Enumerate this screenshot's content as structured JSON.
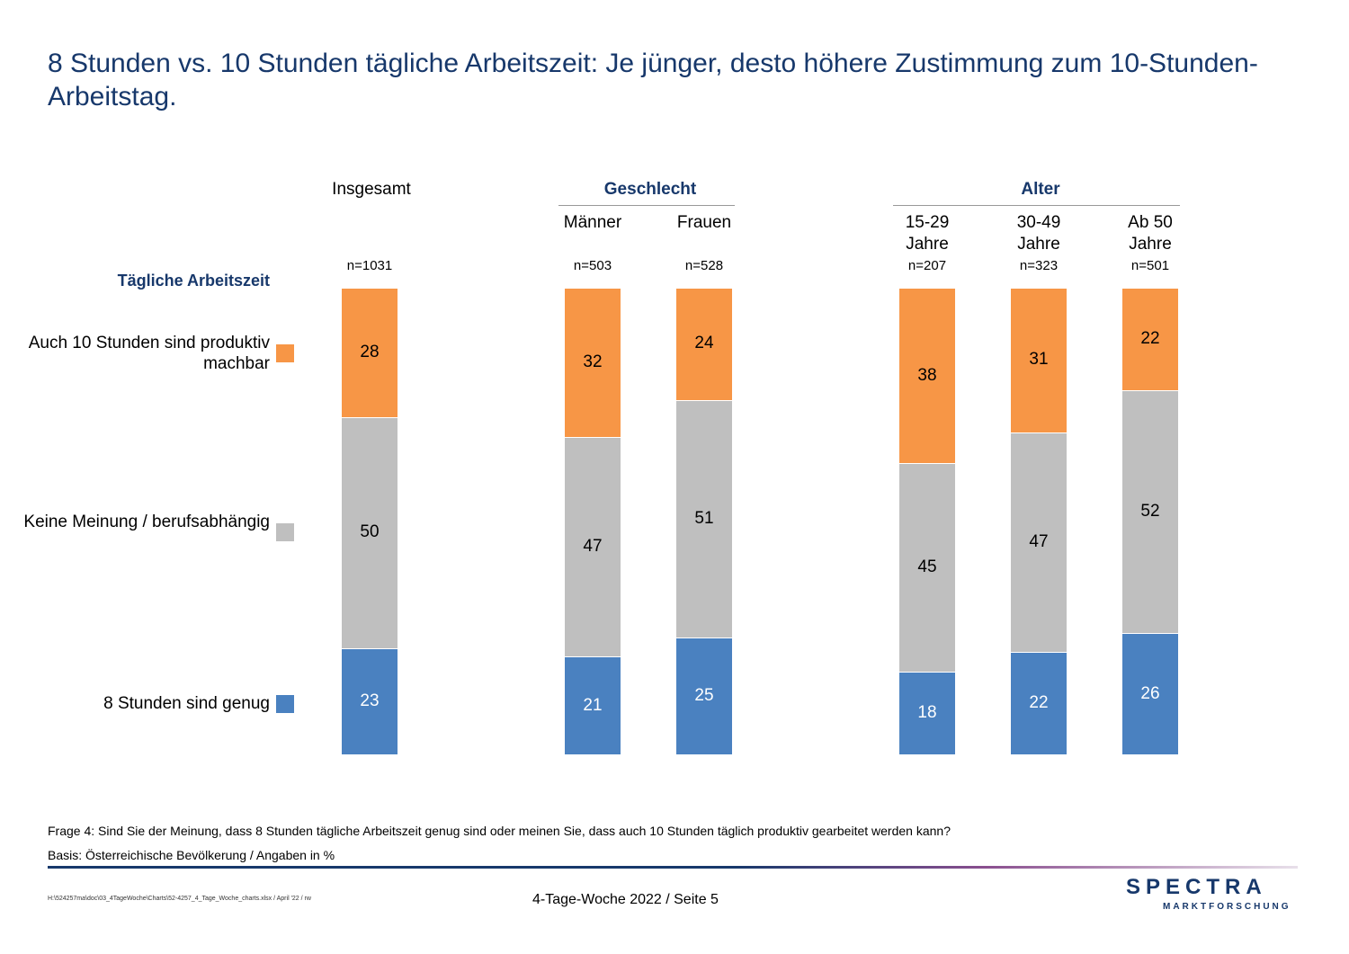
{
  "title": "8 Stunden vs. 10 Stunden tägliche Arbeitszeit: Je jünger, desto höhere Zustimmung zum 10-Stunden-Arbeitstag.",
  "groups": {
    "insgesamt": "Insgesamt",
    "geschlecht": "Geschlecht",
    "alter": "Alter"
  },
  "legend_title": "Tägliche Arbeitszeit",
  "colors": {
    "orange": "#f79646",
    "gray": "#bfbfbf",
    "blue": "#4a81c0"
  },
  "chart_data": {
    "type": "bar",
    "stacked": true,
    "categories": [
      "Insgesamt",
      "Männer",
      "Frauen",
      "15-29 Jahre",
      "30-49 Jahre",
      "Ab 50 Jahre"
    ],
    "n_labels": [
      "n=1031",
      "n=503",
      "n=528",
      "n=207",
      "n=323",
      "n=501"
    ],
    "series": [
      {
        "name": "8 Stunden sind genug",
        "color": "#4a81c0",
        "label_color": "#ffffff",
        "values": [
          23,
          21,
          25,
          18,
          22,
          26
        ]
      },
      {
        "name": "Keine Meinung / berufsabhängig",
        "color": "#bfbfbf",
        "label_color": "#000000",
        "values": [
          50,
          47,
          51,
          45,
          47,
          52
        ]
      },
      {
        "name": "Auch 10 Stunden sind produktiv machbar",
        "color": "#f79646",
        "label_color": "#000000",
        "values": [
          28,
          32,
          24,
          38,
          31,
          22
        ]
      }
    ]
  },
  "footnotes": {
    "question": "Frage 4: Sind Sie der Meinung, dass 8 Stunden tägliche Arbeitszeit genug sind oder meinen Sie, dass auch 10 Stunden täglich produktiv gearbeitet werden kann?",
    "basis": "Basis: Österreichische Bevölkerung / Angaben in %"
  },
  "footer": {
    "path": "H:\\524257ma\\doc\\03_4TageWoche\\Charts\\52-4257_4_Tage_Woche_charts.xlsx / April '22 / rw",
    "page": "4-Tage-Woche 2022  /  Seite  5",
    "logo_main": "SPECTRA",
    "logo_sub": "MARKTFORSCHUNG"
  }
}
